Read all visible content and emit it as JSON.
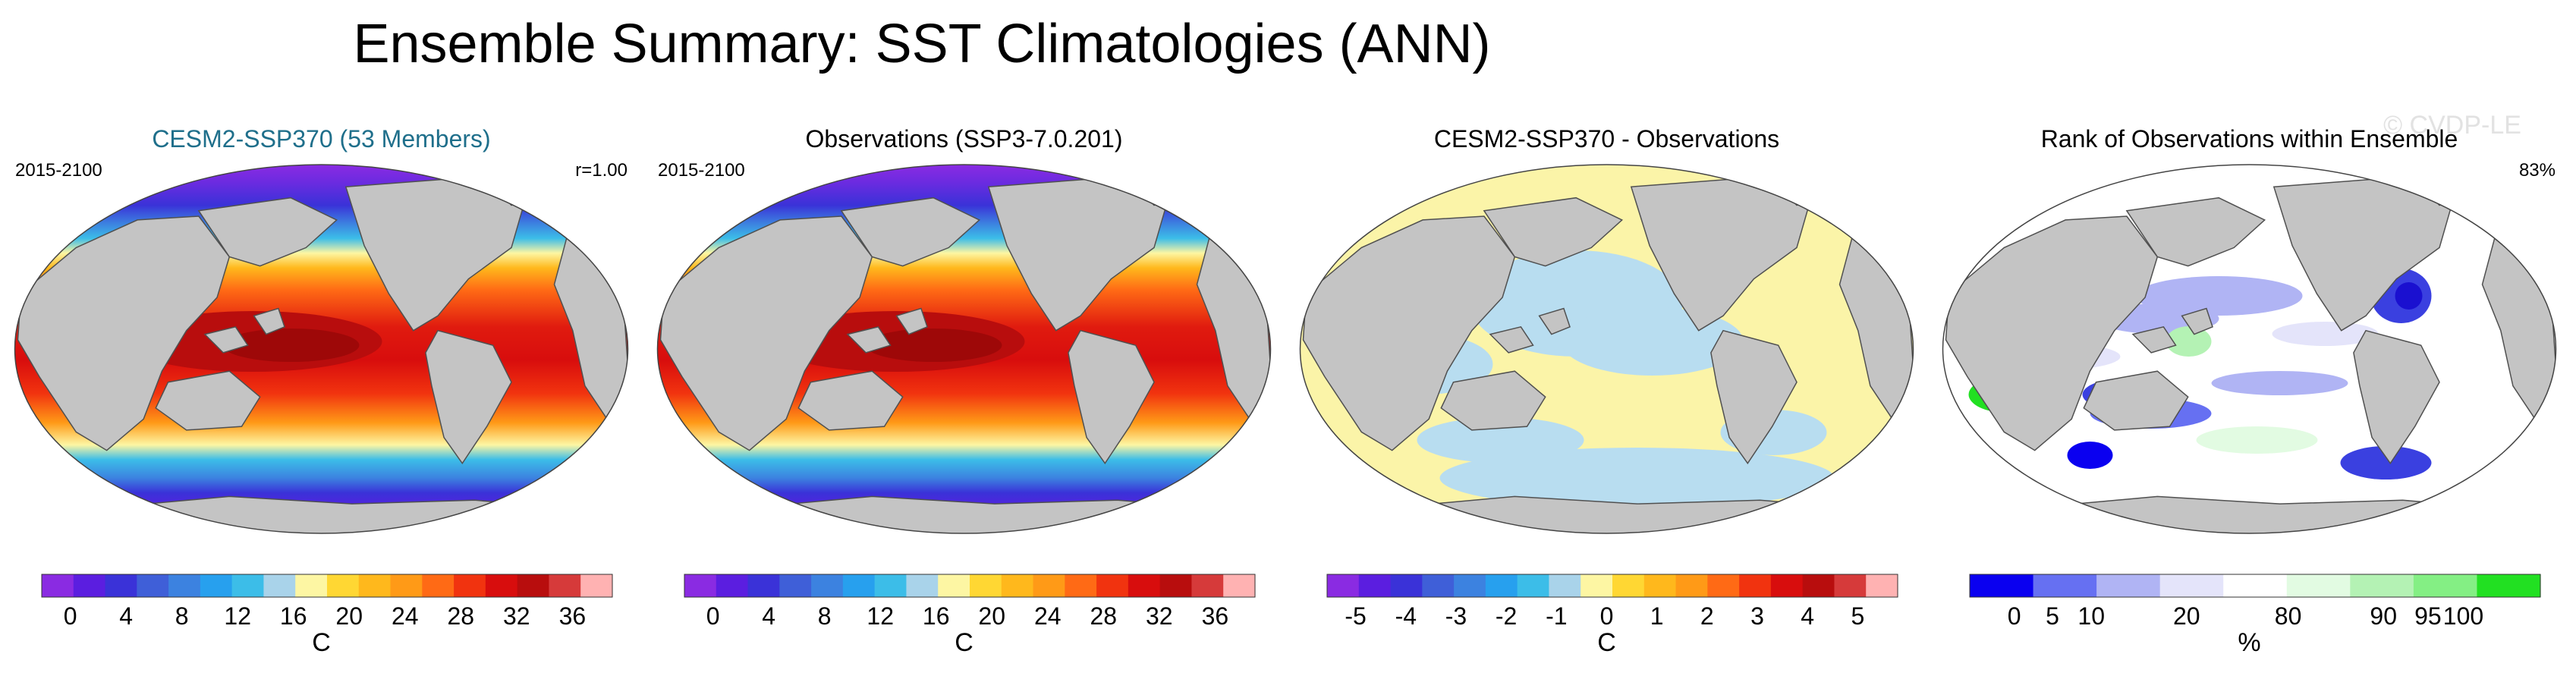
{
  "page_title": "Ensemble Summary: SST Climatologies (ANN)",
  "watermark": "© CVDP-LE",
  "panels": [
    {
      "title": "CESM2-SSP370 (53 Members)",
      "title_color": "#1f6f8b",
      "left_label": "2015-2100",
      "right_label": "r=1.00",
      "map_kind": "sst",
      "colorbar": {
        "colors": [
          "#8a2be2",
          "#5b1ee0",
          "#3a32d8",
          "#3f5fd8",
          "#3c82e0",
          "#27a0ee",
          "#3cbde8",
          "#a9d3ea",
          "#fdf6a3",
          "#ffd733",
          "#ffb81c",
          "#ff9a17",
          "#ff6a15",
          "#f1330f",
          "#d80d0d",
          "#b80d0d",
          "#d63a3a",
          "#ffb2b2"
        ],
        "tick_labels": [
          "0",
          "4",
          "8",
          "12",
          "16",
          "20",
          "24",
          "28",
          "32",
          "36"
        ],
        "unit": "C"
      }
    },
    {
      "title": "Observations (SSP3-7.0.201)",
      "title_color": "#000000",
      "left_label": "2015-2100",
      "right_label": "",
      "map_kind": "sst",
      "colorbar": {
        "colors": [
          "#8a2be2",
          "#5b1ee0",
          "#3a32d8",
          "#3f5fd8",
          "#3c82e0",
          "#27a0ee",
          "#3cbde8",
          "#a9d3ea",
          "#fdf6a3",
          "#ffd733",
          "#ffb81c",
          "#ff9a17",
          "#ff6a15",
          "#f1330f",
          "#d80d0d",
          "#b80d0d",
          "#d63a3a",
          "#ffb2b2"
        ],
        "tick_labels": [
          "0",
          "4",
          "8",
          "12",
          "16",
          "20",
          "24",
          "28",
          "32",
          "36"
        ],
        "unit": "C"
      }
    },
    {
      "title": "CESM2-SSP370 - Observations",
      "title_color": "#000000",
      "left_label": "",
      "right_label": "",
      "map_kind": "diff",
      "colorbar": {
        "colors": [
          "#8a2be2",
          "#5b1ee0",
          "#3a32d8",
          "#3f5fd8",
          "#3c82e0",
          "#27a0ee",
          "#3cbde8",
          "#a9d3ea",
          "#fdf6a3",
          "#ffd733",
          "#ffb81c",
          "#ff9a17",
          "#ff6a15",
          "#f1330f",
          "#d80d0d",
          "#b80d0d",
          "#d63a3a",
          "#ffb2b2"
        ],
        "tick_labels": [
          "-5",
          "-4",
          "-3",
          "-2",
          "-1",
          "0",
          "1",
          "2",
          "3",
          "4",
          "5"
        ],
        "unit": "C"
      }
    },
    {
      "title": "Rank of Observations within Ensemble",
      "title_color": "#000000",
      "left_label": "",
      "right_label": "83%",
      "map_kind": "rank",
      "colorbar": {
        "colors": [
          "#0a00f0",
          "#6670f2",
          "#b0b4f4",
          "#e4e4fa",
          "#ffffff",
          "#e2fbe2",
          "#b4f2b4",
          "#84ef84",
          "#22e022"
        ],
        "tick_labels": [
          "0",
          "5",
          "10",
          "20",
          "80",
          "90",
          "95",
          "100"
        ],
        "unit": "%"
      }
    }
  ],
  "colors": {
    "land": "#c4c4c4",
    "coast": "#505050",
    "diff_pos": "#fbf4a8",
    "diff_neg": "#b8ddf0"
  }
}
